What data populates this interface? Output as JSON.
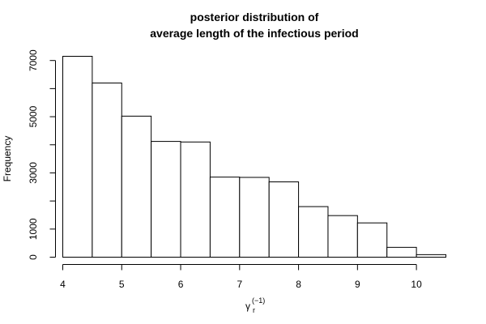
{
  "chart_data": {
    "type": "bar",
    "title": "posterior distribution of\naverage length of the infectious period",
    "title_lines": [
      "posterior distribution of",
      "average length of the infectious period"
    ],
    "xlabel": "γ",
    "xlabel_sub": "r",
    "xlabel_sup": "(−1)",
    "ylabel": "Frequency",
    "bin_edges": [
      4,
      4.5,
      5,
      5.5,
      6,
      6.5,
      7,
      7.5,
      8,
      8.5,
      9,
      9.5,
      10,
      10.5
    ],
    "values": [
      7150,
      6200,
      5020,
      4120,
      4100,
      2850,
      2840,
      2680,
      1800,
      1480,
      1220,
      350,
      90
    ],
    "xlim": [
      4,
      10.5
    ],
    "ylim": [
      0,
      7150
    ],
    "x_ticks": [
      4,
      5,
      6,
      7,
      8,
      9,
      10
    ],
    "x_tick_labels": [
      "4",
      "5",
      "6",
      "7",
      "8",
      "9",
      "10"
    ],
    "y_ticks": [
      0,
      1000,
      2000,
      3000,
      4000,
      5000,
      6000,
      7000
    ],
    "y_tick_labels": [
      "0",
      "1000",
      "",
      "3000",
      "",
      "5000",
      "",
      "7000"
    ],
    "grid": false,
    "bar_fill": "#ffffff",
    "bar_stroke": "#000000"
  }
}
